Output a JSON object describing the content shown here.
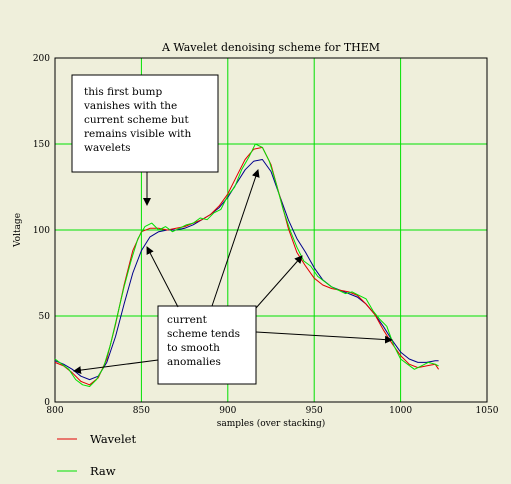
{
  "colors": {
    "background": "#efefdb",
    "grid": "#00e000",
    "raw": "#00e000",
    "wavelet": "#e00000",
    "current_scheme": "#00008b"
  },
  "chart_data": {
    "type": "line",
    "title": "A Wavelet denoising scheme for THEM",
    "xlabel": "samples (over stacking)",
    "ylabel": "Voltage",
    "xlim": [
      800,
      1050
    ],
    "ylim": [
      0,
      200
    ],
    "x_ticks": [
      "800",
      "850",
      "900",
      "950",
      "1000",
      "1050"
    ],
    "y_ticks": [
      "0",
      "50",
      "100",
      "150",
      "200"
    ],
    "grid": true,
    "legend_position": "bottom-left",
    "series": [
      {
        "name": "Wavelet",
        "color": "#e00000",
        "x": [
          800,
          805,
          810,
          815,
          820,
          825,
          830,
          835,
          840,
          845,
          850,
          855,
          860,
          865,
          870,
          875,
          880,
          885,
          890,
          895,
          900,
          905,
          910,
          915,
          920,
          925,
          930,
          935,
          940,
          945,
          950,
          955,
          960,
          965,
          970,
          975,
          980,
          985,
          990,
          995,
          1000,
          1005,
          1010,
          1015,
          1020,
          1022
        ],
        "y": [
          23,
          21,
          17,
          12,
          10,
          14,
          25,
          45,
          68,
          88,
          99,
          101,
          101,
          100,
          101,
          102,
          104,
          106,
          109,
          114,
          121,
          131,
          141,
          147,
          148,
          138,
          120,
          101,
          87,
          79,
          72,
          68,
          66,
          65,
          64,
          62,
          57,
          51,
          42,
          34,
          27,
          22,
          20,
          21,
          22,
          19
        ]
      },
      {
        "name": "Raw",
        "color": "#00e000",
        "x": [
          800,
          804,
          808,
          812,
          816,
          820,
          824,
          828,
          832,
          836,
          840,
          844,
          848,
          852,
          856,
          860,
          864,
          868,
          872,
          876,
          880,
          884,
          888,
          892,
          896,
          900,
          904,
          908,
          912,
          916,
          920,
          924,
          928,
          932,
          936,
          940,
          944,
          948,
          952,
          956,
          960,
          964,
          968,
          972,
          976,
          980,
          984,
          988,
          992,
          996,
          1000,
          1004,
          1008,
          1012,
          1016,
          1020,
          1022
        ],
        "y": [
          25,
          22,
          19,
          13,
          10,
          9,
          13,
          20,
          33,
          50,
          67,
          82,
          95,
          102,
          104,
          100,
          102,
          99,
          101,
          103,
          104,
          107,
          106,
          110,
          112,
          120,
          125,
          135,
          142,
          150,
          148,
          140,
          127,
          112,
          100,
          90,
          82,
          79,
          73,
          70,
          67,
          65,
          63,
          64,
          62,
          60,
          53,
          48,
          44,
          33,
          25,
          22,
          19,
          21,
          23,
          22,
          21
        ]
      },
      {
        "name": "",
        "color": "#00008b",
        "x": [
          800,
          805,
          810,
          815,
          820,
          825,
          830,
          835,
          840,
          845,
          850,
          855,
          860,
          865,
          870,
          875,
          880,
          885,
          890,
          895,
          900,
          905,
          910,
          915,
          920,
          925,
          930,
          935,
          940,
          945,
          950,
          955,
          960,
          965,
          970,
          975,
          980,
          985,
          990,
          995,
          1000,
          1005,
          1010,
          1015,
          1020,
          1022
        ],
        "y": [
          24,
          22,
          19,
          15,
          13,
          15,
          23,
          38,
          57,
          75,
          88,
          96,
          99,
          100,
          100,
          101,
          103,
          106,
          109,
          113,
          119,
          127,
          135,
          140,
          141,
          134,
          120,
          106,
          95,
          87,
          78,
          71,
          67,
          65,
          63,
          61,
          57,
          51,
          44,
          36,
          29,
          25,
          23,
          23,
          24,
          24
        ]
      }
    ],
    "annotations": [
      {
        "text": [
          "this first bump",
          "vanishes with the",
          "current scheme but",
          "remains visible with",
          "wavelets"
        ]
      },
      {
        "text": [
          "current",
          "scheme tends",
          "to smooth",
          "anomalies"
        ]
      }
    ]
  }
}
